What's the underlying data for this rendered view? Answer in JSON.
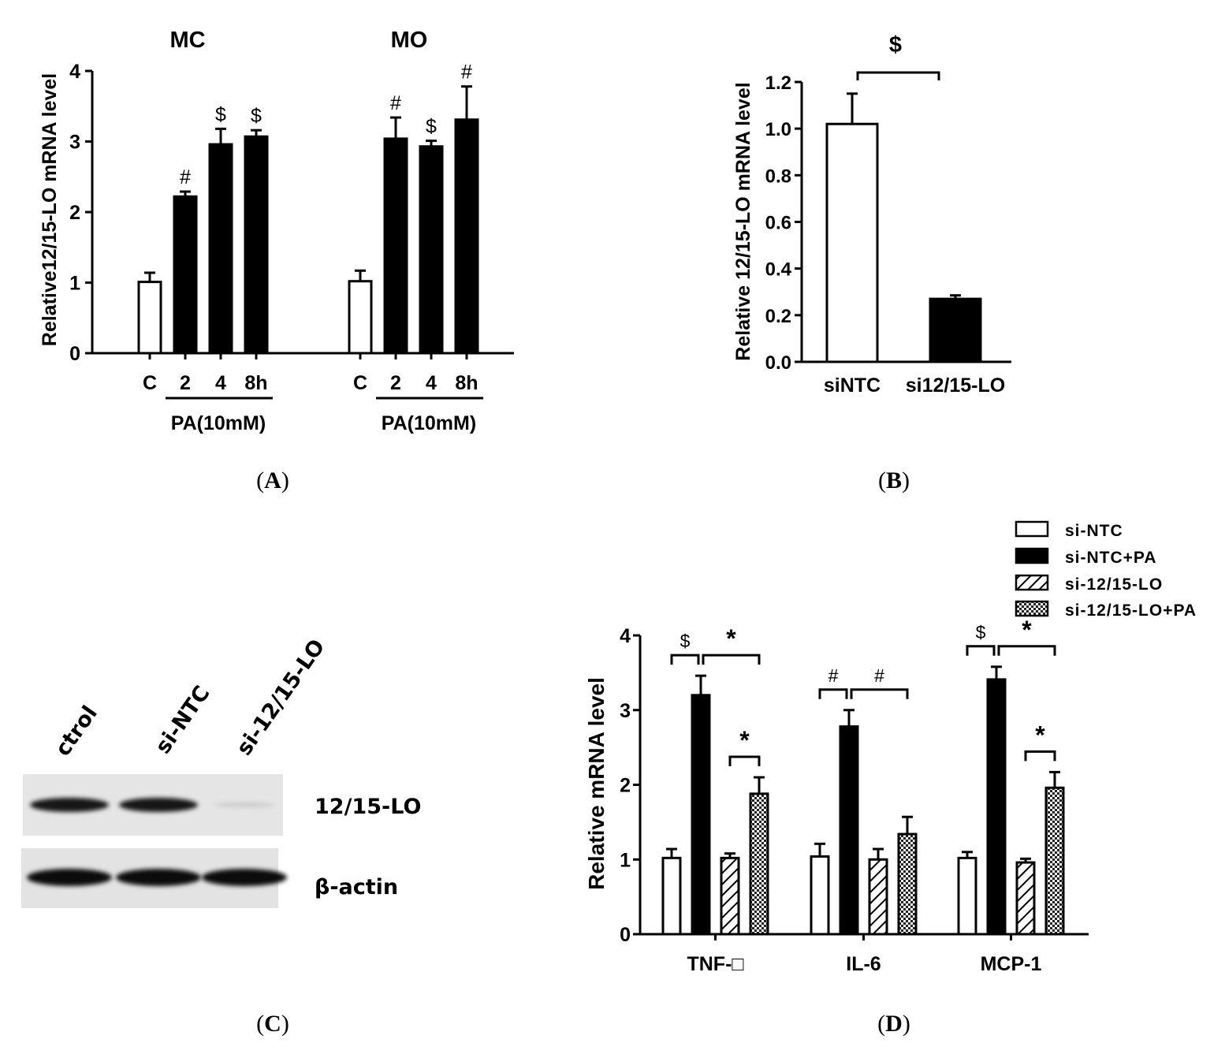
{
  "captions": {
    "a": "(A)",
    "b": "(B)",
    "c": "(C)",
    "d": "(D)",
    "a_letter": "A",
    "b_letter": "B",
    "c_letter": "C",
    "d_letter": "D"
  },
  "chart_data": [
    {
      "panel": "A",
      "type": "bar",
      "ylabel": "Relative12/15-LO mRNA level",
      "ylim": [
        0,
        4
      ],
      "yticks": [
        "0",
        "1",
        "2",
        "3",
        "4"
      ],
      "groups": [
        {
          "title": "MC",
          "categories": [
            "C",
            "2",
            "4",
            "8h"
          ],
          "values": [
            1.01,
            2.22,
            2.96,
            3.07
          ],
          "errors": [
            0.13,
            0.07,
            0.22,
            0.09
          ],
          "marks": [
            "",
            "#",
            "$",
            "$"
          ],
          "fills": [
            "white",
            "black",
            "black",
            "black"
          ],
          "bracket_label": "PA(10mM)"
        },
        {
          "title": "MO",
          "categories": [
            "C",
            "2",
            "4",
            "8h"
          ],
          "values": [
            1.02,
            3.04,
            2.93,
            3.31
          ],
          "errors": [
            0.15,
            0.3,
            0.08,
            0.47
          ],
          "marks": [
            "",
            "#",
            "$",
            "#"
          ],
          "fills": [
            "white",
            "black",
            "black",
            "black"
          ],
          "bracket_label": "PA(10mM)"
        }
      ]
    },
    {
      "panel": "B",
      "type": "bar",
      "ylabel": "Relative 12/15-LO mRNA level",
      "ylim": [
        0,
        1.2
      ],
      "yticks": [
        "0.0",
        "0.2",
        "0.4",
        "0.6",
        "0.8",
        "1.0",
        "1.2"
      ],
      "categories": [
        "siNTC",
        "si12/15-LO"
      ],
      "values": [
        1.02,
        0.27
      ],
      "errors": [
        0.13,
        0.015
      ],
      "fills": [
        "white",
        "black"
      ],
      "significance": "$"
    },
    {
      "panel": "D",
      "type": "bar",
      "ylabel": "Relative mRNA level",
      "ylim": [
        0,
        4
      ],
      "yticks": [
        "0",
        "1",
        "2",
        "3",
        "4"
      ],
      "categories": [
        "TNF-□",
        "IL-6",
        "MCP-1"
      ],
      "legend": [
        "si-NTC",
        "si-NTC+PA",
        "si-12/15-LO",
        "si-12/15-LO+PA"
      ],
      "legend_placement": "top-right",
      "series": [
        {
          "name": "si-NTC",
          "values": [
            1.02,
            1.04,
            1.02
          ],
          "errors": [
            0.12,
            0.17,
            0.08
          ]
        },
        {
          "name": "si-NTC+PA",
          "values": [
            3.2,
            2.78,
            3.41
          ],
          "errors": [
            0.26,
            0.22,
            0.17
          ]
        },
        {
          "name": "si-12/15-LO",
          "values": [
            1.02,
            1.0,
            0.96
          ],
          "errors": [
            0.06,
            0.14,
            0.05
          ]
        },
        {
          "name": "si-12/15-LO+PA",
          "values": [
            1.88,
            1.34,
            1.96
          ],
          "errors": [
            0.22,
            0.23,
            0.21
          ]
        }
      ],
      "significance": [
        {
          "category": "TNF-□",
          "marks": [
            "$",
            "*",
            "*"
          ]
        },
        {
          "category": "IL-6",
          "marks": [
            "#",
            "#"
          ]
        },
        {
          "category": "MCP-1",
          "marks": [
            "$",
            "*",
            "*"
          ]
        }
      ]
    }
  ],
  "blot": {
    "lanes": [
      "ctrol",
      "si-NTC",
      "si-12/15-LO"
    ],
    "rows": [
      {
        "label": "12/15-LO",
        "intensity": [
          0.9,
          0.9,
          0.1
        ]
      },
      {
        "label": "β-actin",
        "intensity": [
          0.95,
          0.95,
          0.95
        ]
      }
    ]
  }
}
